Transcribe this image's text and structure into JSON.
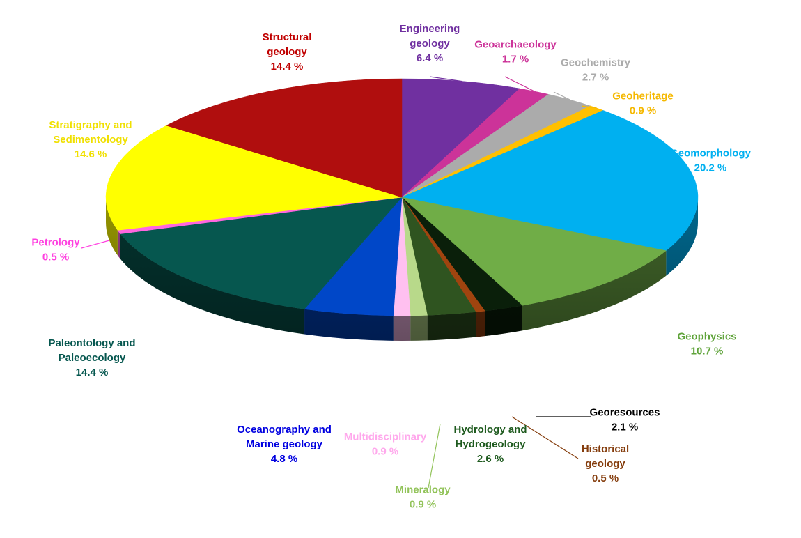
{
  "chart_data": {
    "type": "pie",
    "style": "3d-tilted",
    "slices": [
      {
        "name_lines": [
          "Engineering",
          "geology"
        ],
        "value": 6.4,
        "value_label": "6.4 %",
        "color": "#7030A0",
        "label_color": "#7030A0"
      },
      {
        "name_lines": [
          "Geoarchaeology"
        ],
        "value": 1.7,
        "value_label": "1.7 %",
        "color": "#CC3399",
        "label_color": "#CC3399"
      },
      {
        "name_lines": [
          "Geochemistry"
        ],
        "value": 2.7,
        "value_label": "2.7 %",
        "color": "#ABABAB",
        "label_color": "#ABABAB"
      },
      {
        "name_lines": [
          "Geoheritage"
        ],
        "value": 0.9,
        "value_label": "0.9 %",
        "color": "#FFC000",
        "label_color": "#F5B800"
      },
      {
        "name_lines": [
          "Geomorphology"
        ],
        "value": 20.2,
        "value_label": "20.2 %",
        "color": "#00B0F0",
        "label_color": "#00B0F0"
      },
      {
        "name_lines": [
          "Geophysics"
        ],
        "value": 10.7,
        "value_label": "10.7 %",
        "color": "#70AD47",
        "label_color": "#5FA33A"
      },
      {
        "name_lines": [
          "Georesources"
        ],
        "value": 2.1,
        "value_label": "2.1 %",
        "color": "#0A1F0A",
        "label_color": "#000000"
      },
      {
        "name_lines": [
          "Historical",
          "geology"
        ],
        "value": 0.5,
        "value_label": "0.5 %",
        "color": "#A0440F",
        "label_color": "#843C0C"
      },
      {
        "name_lines": [
          "Hydrology and",
          "Hydrogeology"
        ],
        "value": 2.6,
        "value_label": "2.6 %",
        "color": "#2F5420",
        "label_color": "#1E5A1E"
      },
      {
        "name_lines": [
          "Mineralogy"
        ],
        "value": 0.9,
        "value_label": "0.9 %",
        "color": "#B8D98A",
        "label_color": "#92C35A"
      },
      {
        "name_lines": [
          "Multidisciplinary"
        ],
        "value": 0.9,
        "value_label": "0.9 %",
        "color": "#FFC0F0",
        "label_color": "#FFA8EC"
      },
      {
        "name_lines": [
          "Oceanography and",
          "Marine geology"
        ],
        "value": 4.8,
        "value_label": "4.8 %",
        "color": "#0047C8",
        "label_color": "#0000E0"
      },
      {
        "name_lines": [
          "Paleontology and",
          "Paleoecology"
        ],
        "value": 14.4,
        "value_label": "14.4 %",
        "color": "#06574F",
        "label_color": "#06574F"
      },
      {
        "name_lines": [
          "Petrology"
        ],
        "value": 0.5,
        "value_label": "0.5 %",
        "color": "#FF66E0",
        "label_color": "#FF40E0"
      },
      {
        "name_lines": [
          "Stratigraphy and",
          "Sedimentology"
        ],
        "value": 14.6,
        "value_label": "14.6 %",
        "color": "#FFFF00",
        "label_color": "#F0E000"
      },
      {
        "name_lines": [
          "Structural",
          "geology"
        ],
        "value": 14.4,
        "value_label": "14.4 %",
        "color": "#B00E0E",
        "label_color": "#C00000"
      }
    ],
    "legend": "none",
    "title": ""
  }
}
